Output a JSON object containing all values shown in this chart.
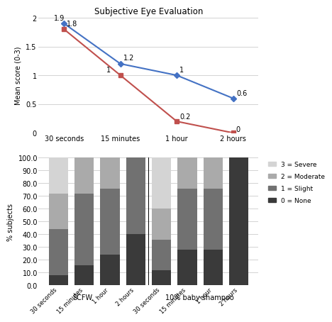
{
  "line_title": "Subjective Eye Evaluation",
  "line_xlabel_values": [
    "30 seconds",
    "15 minutes",
    "1 hour",
    "2 hours"
  ],
  "scfw_values": [
    1.9,
    1.2,
    1.0,
    0.6
  ],
  "shampoo_values": [
    1.8,
    1.0,
    0.2,
    0.0
  ],
  "scfw_color": "#4472C4",
  "shampoo_color": "#C0504D",
  "line_ylim": [
    0,
    2.0
  ],
  "line_yticks": [
    0,
    0.5,
    1.0,
    1.5,
    2.0
  ],
  "line_ylabel": "Mean score (0-3)",
  "legend_line": [
    "SCFW",
    "10% baby shampoo"
  ],
  "bar_categories": [
    "30 seconds",
    "15 minutes",
    "1 hour",
    "2 hours",
    "30 seconds",
    "15 minutes",
    "1 hour",
    "2 hours"
  ],
  "bar_ylabel": "% subjects",
  "bar_ylim": [
    0,
    100
  ],
  "bar_yticks": [
    0.0,
    10.0,
    20.0,
    30.0,
    40.0,
    50.0,
    60.0,
    70.0,
    80.0,
    90.0,
    100.0
  ],
  "score0_values": [
    8,
    16,
    24,
    40,
    12,
    28,
    28,
    100
  ],
  "score1_values": [
    36,
    56,
    52,
    60,
    24,
    48,
    48,
    0
  ],
  "score2_values": [
    28,
    28,
    24,
    0,
    24,
    24,
    24,
    0
  ],
  "score3_values": [
    28,
    0,
    0,
    0,
    40,
    0,
    0,
    0
  ],
  "color0": "#3a3a3a",
  "color1": "#717171",
  "color2": "#aaaaaa",
  "color3": "#d4d4d4",
  "scfw_label": "SCFW",
  "shampoo_label": "10% baby shampoo",
  "legend_scores": [
    "3 = Severe",
    "2 = Moderate",
    "1 = Slight",
    "0 = None"
  ]
}
